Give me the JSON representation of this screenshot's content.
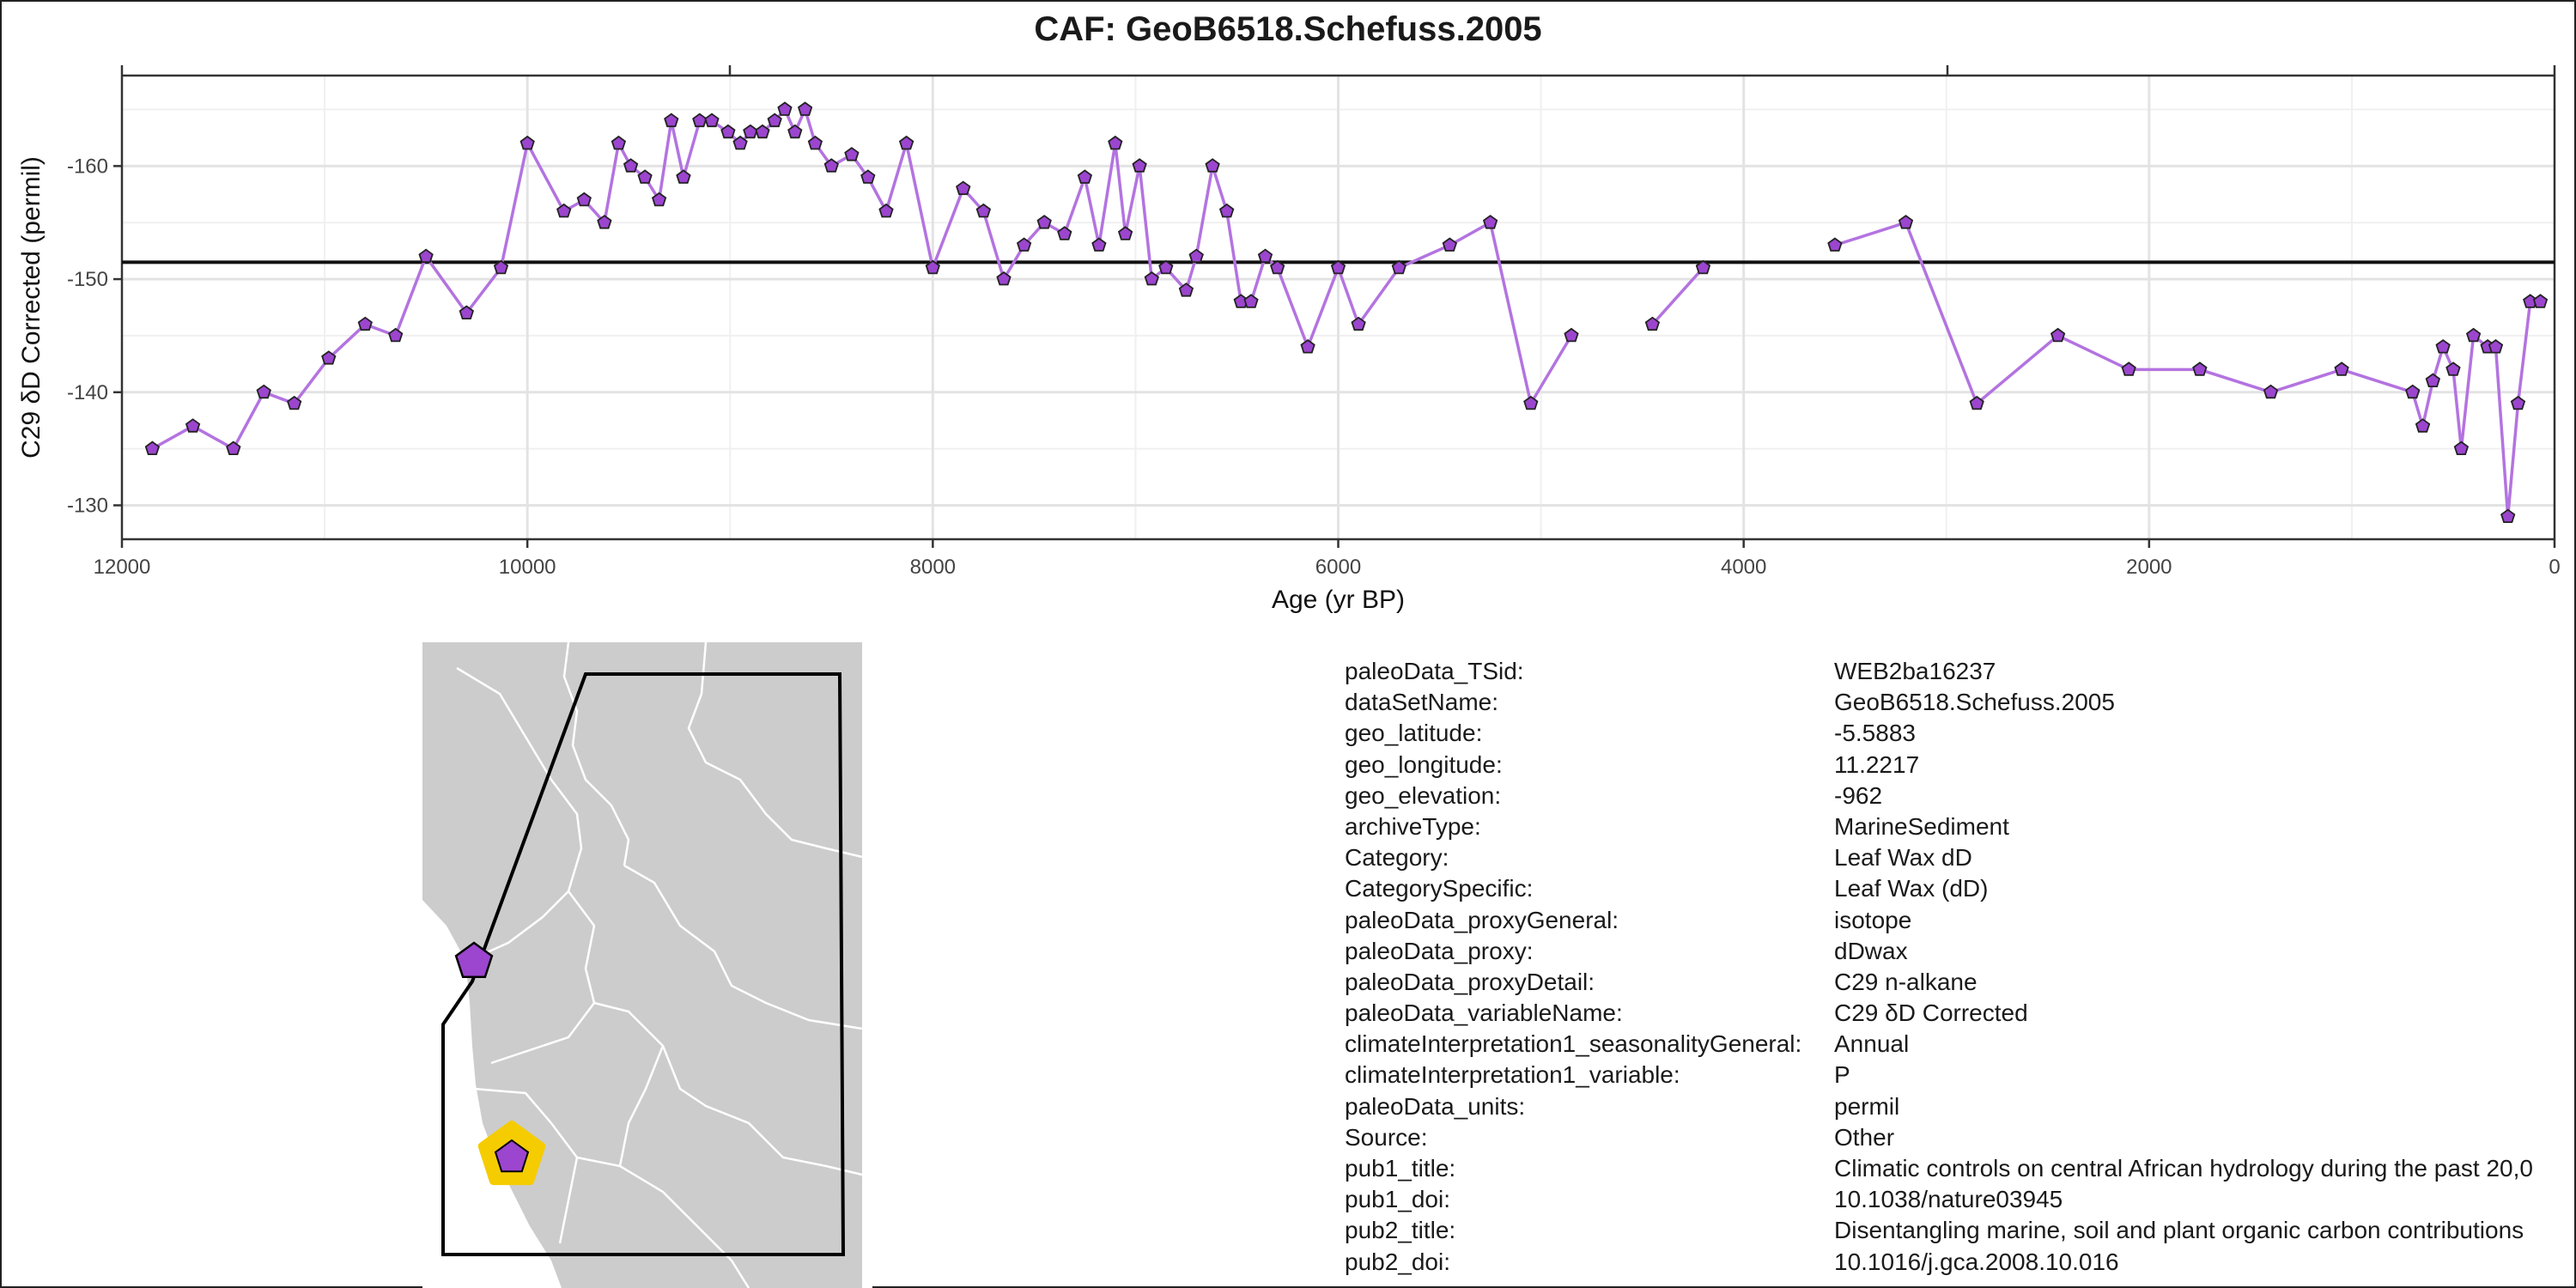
{
  "title": "CAF: GeoB6518.Schefuss.2005",
  "chart_data": {
    "type": "line",
    "xlabel": "Age (yr BP)",
    "ylabel": "C29 δD Corrected (permil)",
    "xlim": [
      12000,
      0
    ],
    "ylim": [
      -127,
      -168
    ],
    "x_reversed": true,
    "y_reversed": true,
    "x_ticks": [
      "12000",
      "10000",
      "8000",
      "6000",
      "4000",
      "2000",
      "0"
    ],
    "y_ticks": [
      "-160",
      "-150",
      "-140",
      "-130"
    ],
    "grid": true,
    "mean_line": -151.5,
    "line_color": "#b373e0",
    "marker": "pentagon",
    "marker_fill": "#9c45cf",
    "segments": [
      {
        "x": [
          11850,
          11650,
          11450,
          11300,
          11150,
          10980,
          10800,
          10650,
          10500,
          10300,
          10130,
          10000,
          9820,
          9720,
          9620,
          9550,
          9490,
          9420,
          9350,
          9290,
          9230,
          9150,
          9090,
          9010,
          8950,
          8900,
          8840,
          8780,
          8730,
          8680,
          8630,
          8580,
          8500,
          8400,
          8320,
          8230,
          8130,
          8000,
          7850,
          7750,
          7650,
          7550,
          7450,
          7350,
          7250,
          7180,
          7100,
          7050,
          6980,
          6920,
          6850,
          6750,
          6700,
          6620,
          6550,
          6480,
          6430,
          6360,
          6300,
          6150,
          6000,
          5900,
          5700,
          5450,
          5250,
          5050,
          4850
        ],
        "y": [
          -135,
          -137,
          -135,
          -140,
          -139,
          -143,
          -146,
          -145,
          -152,
          -147,
          -151,
          -162,
          -156,
          -157,
          -155,
          -162,
          -160,
          -159,
          -157,
          -164,
          -159,
          -164,
          -164,
          -163,
          -162,
          -163,
          -163,
          -164,
          -165,
          -163,
          -165,
          -162,
          -160,
          -161,
          -159,
          -156,
          -162,
          -151,
          -158,
          -156,
          -150,
          -153,
          -155,
          -154,
          -159,
          -153,
          -162,
          -154,
          -160,
          -150,
          -151,
          -149,
          -152,
          -160,
          -156,
          -148,
          -148,
          -152,
          -151,
          -144,
          -151,
          -146,
          -151,
          -153,
          -155,
          -139,
          -145
        ]
      },
      {
        "x": [
          4450,
          4200
        ],
        "y": [
          -146,
          -151
        ]
      },
      {
        "x": [
          3550,
          3200,
          2850,
          2450,
          2100,
          1750,
          1400,
          1050,
          700,
          650,
          600,
          550,
          500,
          460,
          400,
          330,
          290,
          230,
          180,
          120,
          70
        ],
        "y": [
          -153,
          -155,
          -139,
          -145,
          -142,
          -142,
          -140,
          -142,
          -140,
          -137,
          -141,
          -144,
          -142,
          -135,
          -145,
          -144,
          -144,
          -129,
          -139,
          -148,
          -148
        ]
      }
    ]
  },
  "map": {
    "land_color": "#cccccc",
    "ocean_color": "#ffffff",
    "site_marker_color": "#9c45cf",
    "highlight_color": "#f5cc00",
    "marker_icon": "pentagon-icon",
    "site_marker_icon": "pentagon-icon"
  },
  "metadata": [
    {
      "key": "paleoData_TSid:",
      "value": "WEB2ba16237"
    },
    {
      "key": "dataSetName:",
      "value": "GeoB6518.Schefuss.2005"
    },
    {
      "key": "geo_latitude:",
      "value": "-5.5883"
    },
    {
      "key": "geo_longitude:",
      "value": "11.2217"
    },
    {
      "key": "geo_elevation:",
      "value": "-962"
    },
    {
      "key": "archiveType:",
      "value": "MarineSediment"
    },
    {
      "key": "Category:",
      "value": "Leaf Wax dD"
    },
    {
      "key": "CategorySpecific:",
      "value": "Leaf Wax (dD)"
    },
    {
      "key": "paleoData_proxyGeneral:",
      "value": "isotope"
    },
    {
      "key": "paleoData_proxy:",
      "value": "dDwax"
    },
    {
      "key": "paleoData_proxyDetail:",
      "value": "C29 n-alkane"
    },
    {
      "key": "paleoData_variableName:",
      "value": "C29 δD Corrected"
    },
    {
      "key": "climateInterpretation1_seasonalityGeneral:",
      "value": "Annual"
    },
    {
      "key": "climateInterpretation1_variable:",
      "value": "P"
    },
    {
      "key": "paleoData_units:",
      "value": "permil"
    },
    {
      "key": "Source:",
      "value": "Other"
    },
    {
      "key": "pub1_title:",
      "value": "Climatic controls on central African hydrology during the past 20,0"
    },
    {
      "key": "pub1_doi:",
      "value": "10.1038/nature03945"
    },
    {
      "key": "pub2_title:",
      "value": "Disentangling marine, soil and plant organic carbon contributions"
    },
    {
      "key": "pub2_doi:",
      "value": "10.1016/j.gca.2008.10.016"
    }
  ]
}
